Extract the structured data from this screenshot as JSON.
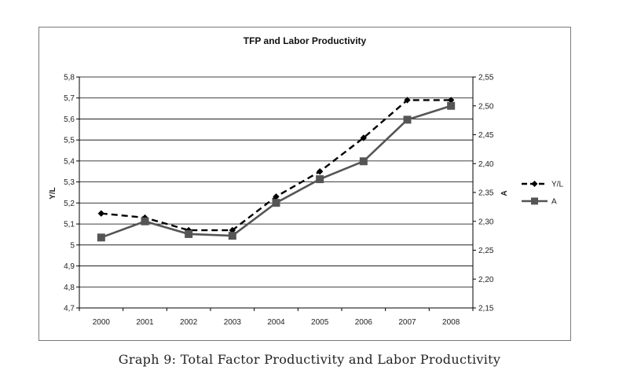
{
  "chart_data": {
    "type": "line",
    "title": "TFP and Labor Productivity",
    "categories": [
      "2000",
      "2001",
      "2002",
      "2003",
      "2004",
      "2005",
      "2006",
      "2007",
      "2008"
    ],
    "y_left": {
      "label": "Y/L",
      "lim": [
        4.7,
        5.8
      ],
      "ticks": [
        4.7,
        4.8,
        4.9,
        5.0,
        5.1,
        5.2,
        5.3,
        5.4,
        5.5,
        5.6,
        5.7,
        5.8
      ],
      "tick_labels": [
        "4,7",
        "4,8",
        "4,9",
        "5",
        "5,1",
        "5,2",
        "5,3",
        "5,4",
        "5,5",
        "5,6",
        "5,7",
        "5,8"
      ]
    },
    "y_right": {
      "label": "A",
      "lim": [
        2.15,
        2.55
      ],
      "ticks": [
        2.15,
        2.2,
        2.25,
        2.3,
        2.35,
        2.4,
        2.45,
        2.5,
        2.55
      ],
      "tick_labels": [
        "2,15",
        "2,20",
        "2,25",
        "2,30",
        "2,35",
        "2,40",
        "2,45",
        "2,50",
        "2,55"
      ]
    },
    "series": [
      {
        "name": "Y/L",
        "axis": "left",
        "style": "dashed",
        "marker": "diamond",
        "color": "#000000",
        "values": [
          5.15,
          5.13,
          5.07,
          5.07,
          5.23,
          5.35,
          5.51,
          5.69,
          5.69
        ]
      },
      {
        "name": "A",
        "axis": "right",
        "style": "solid",
        "marker": "square",
        "color": "#555555",
        "values": [
          2.272,
          2.3,
          2.278,
          2.275,
          2.332,
          2.373,
          2.404,
          2.476,
          2.5
        ]
      }
    ],
    "grid": true,
    "legend": "right"
  },
  "caption": "Graph 9:  Total Factor Productivity and Labor Productivity"
}
